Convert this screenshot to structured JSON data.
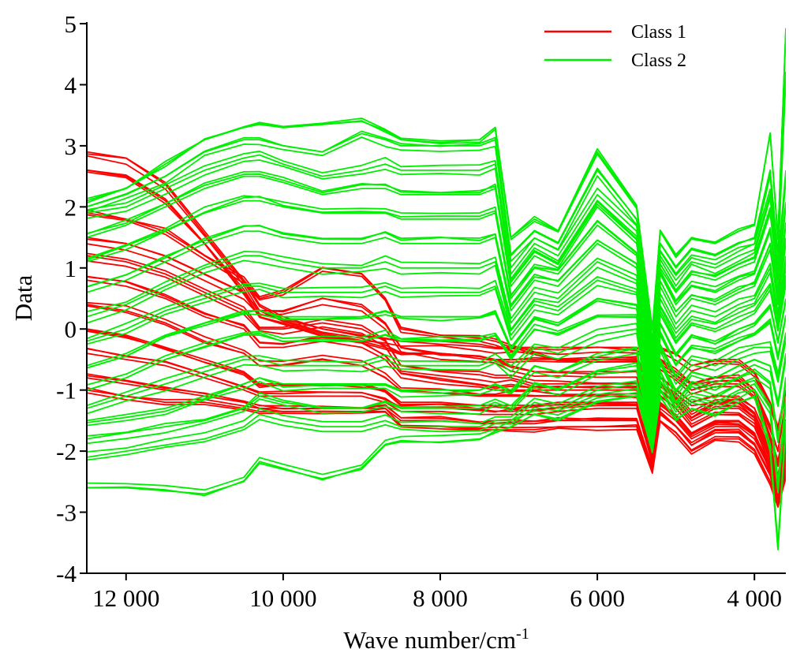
{
  "chart_data": {
    "type": "line",
    "title": "",
    "xlabel": "Wave number/cm",
    "xlabel_superscript": "-1",
    "ylabel": "Data",
    "x_reversed": true,
    "xlim": [
      12500,
      3600
    ],
    "ylim": [
      -4,
      5
    ],
    "x_ticks": [
      12000,
      10000,
      8000,
      6000,
      4000
    ],
    "x_tick_labels": [
      "12 000",
      "10 000",
      "8 000",
      "6 000",
      "4 000"
    ],
    "y_ticks": [
      -4,
      -3,
      -2,
      -1,
      0,
      1,
      2,
      3,
      4,
      5
    ],
    "y_tick_labels": [
      "-4",
      "-3",
      "-2",
      "-1",
      "0",
      "1",
      "2",
      "3",
      "4",
      "5"
    ],
    "grid": false,
    "legend_position": "top-right",
    "x": [
      12500,
      12000,
      11500,
      11000,
      10500,
      10300,
      10000,
      9500,
      9000,
      8700,
      8500,
      8000,
      7500,
      7300,
      7100,
      6800,
      6500,
      6000,
      5500,
      5300,
      5200,
      5000,
      4800,
      4500,
      4200,
      4000,
      3800,
      3700,
      3600
    ],
    "series": [
      {
        "name": "Class 1",
        "color": "#ff0000",
        "values_note_free": true,
        "values": [
          [
            2.9,
            2.8,
            2.4,
            1.6,
            0.8,
            0.4,
            0.2,
            0.0,
            -0.1,
            -0.15,
            -0.2,
            -0.2,
            -0.25,
            -0.3,
            -0.3,
            -0.3,
            -0.3,
            -0.3,
            -0.3,
            -0.5,
            -0.3,
            -0.4,
            -0.6,
            -0.5,
            -0.5,
            -0.7,
            -1.2,
            -1.6,
            -1.0
          ],
          [
            2.6,
            2.5,
            2.1,
            1.4,
            0.6,
            0.2,
            0.1,
            -0.1,
            -0.2,
            -0.3,
            -0.4,
            -0.4,
            -0.45,
            -0.5,
            -0.5,
            -0.5,
            -0.5,
            -0.5,
            -0.5,
            -1.4,
            -0.5,
            -0.7,
            -0.9,
            -0.8,
            -0.8,
            -1.0,
            -1.6,
            -2.0,
            -1.2
          ],
          [
            1.9,
            1.8,
            1.6,
            1.2,
            0.8,
            0.5,
            0.6,
            1.0,
            0.9,
            0.5,
            0.0,
            -0.1,
            -0.15,
            -0.2,
            -0.3,
            -0.4,
            -0.5,
            -0.5,
            -0.5,
            -1.0,
            -0.6,
            -0.8,
            -1.0,
            -0.9,
            -0.9,
            -1.1,
            -1.8,
            -2.2,
            -1.5
          ],
          [
            1.5,
            1.4,
            1.2,
            0.9,
            0.6,
            0.3,
            0.3,
            0.5,
            0.4,
            0.1,
            -0.3,
            -0.4,
            -0.45,
            -0.5,
            -0.6,
            -0.7,
            -0.7,
            -0.7,
            -0.7,
            -1.6,
            -0.8,
            -1.0,
            -1.2,
            -1.1,
            -1.1,
            -1.3,
            -1.9,
            -2.4,
            -1.7
          ],
          [
            1.2,
            1.1,
            0.9,
            0.6,
            0.3,
            0.0,
            0.0,
            0.1,
            0.0,
            -0.2,
            -0.6,
            -0.7,
            -0.75,
            -0.8,
            -0.8,
            -0.9,
            -0.9,
            -0.9,
            -0.9,
            -2.2,
            -0.9,
            -1.1,
            -1.4,
            -1.2,
            -1.2,
            -1.4,
            -2.0,
            -2.5,
            -1.8
          ],
          [
            0.8,
            0.7,
            0.5,
            0.2,
            0.0,
            -0.3,
            -0.3,
            -0.2,
            -0.3,
            -0.5,
            -0.8,
            -0.9,
            -0.95,
            -1.0,
            -1.0,
            -1.0,
            -1.0,
            -1.0,
            -1.0,
            -2.0,
            -1.0,
            -1.2,
            -1.5,
            -1.3,
            -1.3,
            -1.5,
            -2.1,
            -2.6,
            -1.9
          ],
          [
            0.4,
            0.3,
            0.1,
            -0.2,
            -0.4,
            -0.6,
            -0.6,
            -0.5,
            -0.6,
            -0.8,
            -1.0,
            -1.05,
            -1.1,
            -1.1,
            -1.1,
            -1.1,
            -1.1,
            -1.1,
            -1.1,
            -1.9,
            -1.1,
            -1.3,
            -1.6,
            -1.4,
            -1.4,
            -1.6,
            -2.2,
            -2.7,
            -2.0
          ],
          [
            0.0,
            -0.1,
            -0.3,
            -0.5,
            -0.7,
            -0.9,
            -0.9,
            -0.9,
            -0.9,
            -1.0,
            -1.2,
            -1.2,
            -1.25,
            -1.25,
            -1.25,
            -1.25,
            -1.2,
            -1.2,
            -1.2,
            -2.1,
            -1.2,
            -1.4,
            -1.7,
            -1.5,
            -1.5,
            -1.7,
            -2.3,
            -2.8,
            -2.1
          ],
          [
            -0.4,
            -0.5,
            -0.6,
            -0.8,
            -1.0,
            -1.1,
            -1.1,
            -1.1,
            -1.1,
            -1.2,
            -1.35,
            -1.35,
            -1.4,
            -1.4,
            -1.4,
            -1.4,
            -1.35,
            -1.3,
            -1.3,
            -2.2,
            -1.3,
            -1.5,
            -1.8,
            -1.6,
            -1.6,
            -1.8,
            -2.3,
            -2.8,
            -2.2
          ],
          [
            -0.8,
            -0.9,
            -1.0,
            -1.1,
            -1.2,
            -1.3,
            -1.3,
            -1.3,
            -1.3,
            -1.3,
            -1.5,
            -1.5,
            -1.55,
            -1.55,
            -1.55,
            -1.55,
            -1.5,
            -1.5,
            -1.5,
            -2.3,
            -1.4,
            -1.6,
            -1.9,
            -1.7,
            -1.7,
            -1.9,
            -2.4,
            -2.9,
            -2.3
          ],
          [
            -1.0,
            -1.1,
            -1.2,
            -1.2,
            -1.3,
            -1.35,
            -1.35,
            -1.35,
            -1.35,
            -1.35,
            -1.6,
            -1.6,
            -1.65,
            -1.65,
            -1.65,
            -1.65,
            -1.6,
            -1.6,
            -1.6,
            -2.3,
            -1.5,
            -1.7,
            -2.0,
            -1.8,
            -1.8,
            -2.0,
            -2.5,
            -2.9,
            -2.4
          ]
        ]
      },
      {
        "name": "Class 2",
        "color": "#00ee00",
        "values": [
          [
            2.1,
            2.3,
            2.7,
            3.1,
            3.3,
            3.35,
            3.3,
            3.35,
            3.4,
            3.25,
            3.1,
            3.05,
            3.1,
            3.3,
            1.5,
            1.8,
            1.6,
            2.9,
            2.0,
            0.0,
            1.6,
            1.2,
            1.5,
            1.4,
            1.6,
            1.7,
            3.2,
            1.5,
            4.9
          ],
          [
            2.0,
            2.2,
            2.5,
            2.9,
            3.1,
            3.1,
            3.0,
            2.9,
            3.2,
            3.1,
            3.0,
            3.0,
            3.0,
            3.1,
            1.2,
            1.6,
            1.4,
            2.6,
            1.8,
            -0.2,
            1.4,
            1.0,
            1.3,
            1.2,
            1.4,
            1.5,
            2.6,
            1.2,
            4.2
          ],
          [
            1.9,
            2.0,
            2.3,
            2.6,
            2.8,
            2.85,
            2.7,
            2.5,
            2.6,
            2.7,
            2.6,
            2.6,
            2.6,
            2.7,
            0.9,
            1.4,
            1.2,
            2.2,
            1.6,
            -0.4,
            1.2,
            0.8,
            1.1,
            1.0,
            1.2,
            1.3,
            2.2,
            1.0,
            2.5
          ],
          [
            1.5,
            1.7,
            2.0,
            2.3,
            2.5,
            2.5,
            2.4,
            2.2,
            2.3,
            2.3,
            2.2,
            2.2,
            2.2,
            2.3,
            0.7,
            1.2,
            1.0,
            2.0,
            1.4,
            -0.6,
            1.0,
            0.6,
            0.9,
            0.8,
            1.0,
            1.1,
            1.9,
            0.8,
            2.0
          ],
          [
            1.1,
            1.3,
            1.6,
            1.9,
            2.1,
            2.1,
            2.0,
            1.9,
            1.9,
            1.9,
            1.8,
            1.8,
            1.8,
            1.9,
            0.5,
            1.0,
            0.9,
            1.7,
            1.2,
            -0.8,
            0.9,
            0.4,
            0.7,
            0.6,
            0.8,
            0.9,
            1.6,
            0.6,
            1.7
          ],
          [
            0.6,
            0.8,
            1.1,
            1.4,
            1.6,
            1.6,
            1.5,
            1.4,
            1.4,
            1.5,
            1.4,
            1.4,
            1.4,
            1.5,
            0.3,
            0.8,
            0.7,
            1.4,
            1.0,
            -1.0,
            0.7,
            0.2,
            0.5,
            0.4,
            0.6,
            0.7,
            1.3,
            0.4,
            1.4
          ],
          [
            0.2,
            0.4,
            0.7,
            1.0,
            1.2,
            1.2,
            1.1,
            1.0,
            1.0,
            1.1,
            1.0,
            1.0,
            1.0,
            1.1,
            0.1,
            0.6,
            0.5,
            1.1,
            0.8,
            -1.2,
            0.5,
            0.0,
            0.3,
            0.2,
            0.4,
            0.5,
            1.0,
            0.2,
            1.1
          ],
          [
            -0.2,
            0.0,
            0.3,
            0.5,
            0.7,
            0.7,
            0.6,
            0.6,
            0.6,
            0.7,
            0.6,
            0.6,
            0.6,
            0.7,
            -0.1,
            0.4,
            0.3,
            0.8,
            0.6,
            -1.4,
            0.3,
            -0.2,
            0.1,
            0.0,
            0.2,
            0.3,
            0.7,
            0.0,
            0.8
          ],
          [
            -0.6,
            -0.4,
            -0.1,
            0.1,
            0.3,
            0.3,
            0.2,
            0.2,
            0.2,
            0.3,
            0.2,
            0.2,
            0.2,
            0.3,
            -0.3,
            0.2,
            0.1,
            0.5,
            0.4,
            -1.5,
            0.1,
            -0.4,
            -0.1,
            -0.2,
            0.0,
            0.1,
            0.4,
            -0.2,
            0.5
          ],
          [
            -1.0,
            -0.8,
            -0.5,
            -0.3,
            -0.1,
            -0.1,
            -0.2,
            -0.2,
            -0.2,
            -0.1,
            -0.2,
            -0.2,
            -0.2,
            -0.1,
            -0.5,
            0.0,
            -0.1,
            0.2,
            0.2,
            -1.6,
            -0.1,
            -0.6,
            -0.3,
            -0.4,
            -0.2,
            -0.1,
            0.1,
            -0.5,
            0.2
          ],
          [
            -1.3,
            -1.1,
            -0.9,
            -0.7,
            -0.5,
            -0.5,
            -0.6,
            -0.6,
            -0.6,
            -0.5,
            -0.6,
            -0.6,
            -0.6,
            -0.5,
            -0.7,
            -0.3,
            -0.4,
            -0.1,
            0.0,
            -1.7,
            -0.3,
            -0.8,
            -0.5,
            -0.6,
            -0.4,
            -0.3,
            -0.3,
            -0.8,
            -0.1
          ],
          [
            -1.5,
            -1.4,
            -1.3,
            -1.1,
            -0.9,
            -0.8,
            -0.9,
            -0.9,
            -0.9,
            -0.9,
            -1.0,
            -1.0,
            -1.0,
            -0.9,
            -1.0,
            -0.6,
            -0.7,
            -0.4,
            -0.3,
            -1.8,
            -0.5,
            -1.0,
            -0.7,
            -0.8,
            -0.6,
            -0.5,
            -0.6,
            -1.2,
            -0.4
          ],
          [
            -1.8,
            -1.7,
            -1.6,
            -1.5,
            -1.3,
            -1.1,
            -1.2,
            -1.3,
            -1.3,
            -1.2,
            -1.3,
            -1.3,
            -1.3,
            -1.2,
            -1.3,
            -0.9,
            -1.0,
            -0.7,
            -0.6,
            -1.8,
            -0.7,
            -1.2,
            -0.9,
            -1.0,
            -0.8,
            -0.7,
            -0.9,
            -1.8,
            -0.8
          ],
          [
            -2.1,
            -2.0,
            -1.9,
            -1.8,
            -1.6,
            -1.4,
            -1.5,
            -1.6,
            -1.6,
            -1.5,
            -1.6,
            -1.6,
            -1.6,
            -1.5,
            -1.5,
            -1.2,
            -1.3,
            -1.0,
            -0.9,
            -1.9,
            -0.9,
            -1.3,
            -1.1,
            -1.2,
            -1.0,
            -0.9,
            -1.3,
            -2.6,
            -1.2
          ],
          [
            -2.6,
            -2.6,
            -2.65,
            -2.7,
            -2.5,
            -2.2,
            -2.3,
            -2.45,
            -2.3,
            -1.9,
            -1.85,
            -1.85,
            -1.8,
            -1.7,
            -1.6,
            -1.4,
            -1.5,
            -1.2,
            -1.1,
            -2.0,
            -1.1,
            -1.5,
            -1.3,
            -1.4,
            -1.2,
            -1.1,
            -2.0,
            -3.6,
            -1.6
          ]
        ]
      }
    ]
  }
}
